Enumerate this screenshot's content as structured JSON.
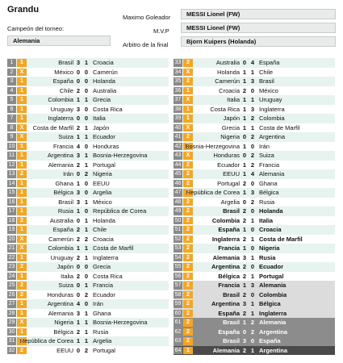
{
  "header": {
    "title": "Grandu",
    "champion_label": "Campeón del torneo:",
    "champion_value": "Alemania",
    "top_scorer_label": "Maximo Goleador",
    "top_scorer_value": "MESSI Lionel (FW)",
    "mvp_label": "M.V.P",
    "mvp_value": "MESSI Lionel (FW)",
    "referee_label": "Arbitro de la final",
    "referee_value": "Bjorn Kuipers (Holanda)"
  },
  "colors": {
    "pick_orange": "#f4a623",
    "number_gray": "#8a8a8a",
    "stripe_green": "#e7f3ef"
  },
  "left_matches": [
    {
      "n": "1",
      "pick": "1",
      "t1": "Brasil",
      "s1": "3",
      "s2": "1",
      "t2": "Croacia"
    },
    {
      "n": "2",
      "pick": "X",
      "t1": "México",
      "s1": "0",
      "s2": "0",
      "t2": "Camerún"
    },
    {
      "n": "3",
      "pick": "1",
      "t1": "España",
      "s1": "0",
      "s2": "0",
      "t2": "Holanda"
    },
    {
      "n": "4",
      "pick": "1",
      "t1": "Chile",
      "s1": "2",
      "s2": "0",
      "t2": "Australia"
    },
    {
      "n": "5",
      "pick": "1",
      "t1": "Colombia",
      "s1": "1",
      "s2": "1",
      "t2": "Grecia"
    },
    {
      "n": "6",
      "pick": "1",
      "t1": "Uruguay",
      "s1": "3",
      "s2": "0",
      "t2": "Costa Rica"
    },
    {
      "n": "7",
      "pick": "1",
      "t1": "Inglaterra",
      "s1": "0",
      "s2": "0",
      "t2": "Italia"
    },
    {
      "n": "8",
      "pick": "X",
      "t1": "Costa de Marfil",
      "s1": "2",
      "s2": "1",
      "t2": "Japón"
    },
    {
      "n": "9",
      "pick": "X",
      "t1": "Suiza",
      "s1": "1",
      "s2": "1",
      "t2": "Ecuador"
    },
    {
      "n": "10",
      "pick": "1",
      "t1": "Francia",
      "s1": "4",
      "s2": "0",
      "t2": "Honduras"
    },
    {
      "n": "11",
      "pick": "1",
      "t1": "Argentina",
      "s1": "3",
      "s2": "1",
      "t2": "Bosnia-Herzegovina"
    },
    {
      "n": "12",
      "pick": "1",
      "t1": "Alemania",
      "s1": "2",
      "s2": "1",
      "t2": "Portugal"
    },
    {
      "n": "13",
      "pick": "2",
      "t1": "Irán",
      "s1": "0",
      "s2": "2",
      "t2": "Nigeria"
    },
    {
      "n": "14",
      "pick": "1",
      "t1": "Ghana",
      "s1": "1",
      "s2": "0",
      "t2": "EEUU"
    },
    {
      "n": "15",
      "pick": "1",
      "t1": "Bélgica",
      "s1": "3",
      "s2": "0",
      "t2": "Argelia"
    },
    {
      "n": "16",
      "pick": "1",
      "t1": "Brasil",
      "s1": "3",
      "s2": "1",
      "t2": "México"
    },
    {
      "n": "17",
      "pick": "1",
      "t1": "Rusia",
      "s1": "1",
      "s2": "0",
      "t2": "República de Corea"
    },
    {
      "n": "18",
      "pick": "2",
      "t1": "Australia",
      "s1": "0",
      "s2": "1",
      "t2": "Holanda"
    },
    {
      "n": "19",
      "pick": "1",
      "t1": "España",
      "s1": "2",
      "s2": "1",
      "t2": "Chile"
    },
    {
      "n": "20",
      "pick": "X",
      "t1": "Camerún",
      "s1": "2",
      "s2": "2",
      "t2": "Croacia"
    },
    {
      "n": "21",
      "pick": "X",
      "t1": "Colombia",
      "s1": "1",
      "s2": "1",
      "t2": "Costa de Marfil"
    },
    {
      "n": "22",
      "pick": "1",
      "t1": "Uruguay",
      "s1": "2",
      "s2": "1",
      "t2": "Inglaterra"
    },
    {
      "n": "23",
      "pick": "2",
      "t1": "Japón",
      "s1": "0",
      "s2": "0",
      "t2": "Grecia"
    },
    {
      "n": "24",
      "pick": "1",
      "t1": "Italia",
      "s1": "2",
      "s2": "0",
      "t2": "Costa Rica"
    },
    {
      "n": "25",
      "pick": "2",
      "t1": "Suiza",
      "s1": "0",
      "s2": "1",
      "t2": "Francia"
    },
    {
      "n": "26",
      "pick": "2",
      "t1": "Honduras",
      "s1": "0",
      "s2": "2",
      "t2": "Ecuador"
    },
    {
      "n": "27",
      "pick": "1",
      "t1": "Argentina",
      "s1": "4",
      "s2": "0",
      "t2": "Irán"
    },
    {
      "n": "28",
      "pick": "1",
      "t1": "Alemania",
      "s1": "3",
      "s2": "1",
      "t2": "Ghana"
    },
    {
      "n": "29",
      "pick": "X",
      "t1": "Nigeria",
      "s1": "1",
      "s2": "1",
      "t2": "Bosnia-Herzegovina"
    },
    {
      "n": "30",
      "pick": "1",
      "t1": "Bélgica",
      "s1": "2",
      "s2": "1",
      "t2": "Rusia"
    },
    {
      "n": "31",
      "pick": "X",
      "t1": "República de Corea",
      "s1": "1",
      "s2": "1",
      "t2": "Argelia"
    },
    {
      "n": "32",
      "pick": "2",
      "t1": "EEUU",
      "s1": "0",
      "s2": "2",
      "t2": "Portugal"
    }
  ],
  "right_matches": [
    {
      "n": "33",
      "pick": "2",
      "t1": "Australia",
      "s1": "0",
      "s2": "4",
      "t2": "España"
    },
    {
      "n": "34",
      "pick": "X",
      "t1": "Holanda",
      "s1": "1",
      "s2": "1",
      "t2": "Chile"
    },
    {
      "n": "35",
      "pick": "2",
      "t1": "Camerún",
      "s1": "1",
      "s2": "3",
      "t2": "Brasil"
    },
    {
      "n": "36",
      "pick": "1",
      "t1": "Croacia",
      "s1": "2",
      "s2": "0",
      "t2": "México"
    },
    {
      "n": "37",
      "pick": "X",
      "t1": "Italia",
      "s1": "1",
      "s2": "1",
      "t2": "Uruguay"
    },
    {
      "n": "38",
      "pick": "1",
      "t1": "Costa Rica",
      "s1": "1",
      "s2": "3",
      "t2": "Inglaterra"
    },
    {
      "n": "39",
      "pick": "1",
      "t1": "Japón",
      "s1": "1",
      "s2": "2",
      "t2": "Colombia"
    },
    {
      "n": "40",
      "pick": "X",
      "t1": "Grecia",
      "s1": "1",
      "s2": "1",
      "t2": "Costa de Marfil"
    },
    {
      "n": "41",
      "pick": "2",
      "t1": "Nigeria",
      "s1": "0",
      "s2": "2",
      "t2": "Argentina"
    },
    {
      "n": "42",
      "pick": "1",
      "t1": "Bosnia-Herzegovina",
      "s1": "1",
      "s2": "0",
      "t2": "Irán"
    },
    {
      "n": "43",
      "pick": "X",
      "t1": "Honduras",
      "s1": "0",
      "s2": "2",
      "t2": "Suiza"
    },
    {
      "n": "44",
      "pick": "2",
      "t1": "Ecuador",
      "s1": "1",
      "s2": "2",
      "t2": "Francia"
    },
    {
      "n": "45",
      "pick": "2",
      "t1": "EEUU",
      "s1": "1",
      "s2": "4",
      "t2": "Alemania"
    },
    {
      "n": "46",
      "pick": "2",
      "t1": "Portugal",
      "s1": "2",
      "s2": "0",
      "t2": "Ghana"
    },
    {
      "n": "47",
      "pick": "2",
      "t1": "República de Corea",
      "s1": "1",
      "s2": "3",
      "t2": "Bélgica"
    },
    {
      "n": "48",
      "pick": "2",
      "t1": "Argelia",
      "s1": "0",
      "s2": "2",
      "t2": "Rusia"
    },
    {
      "n": "49",
      "pick": "2",
      "t1": "Brasil",
      "s1": "2",
      "s2": "0",
      "t2": "Holanda"
    },
    {
      "n": "50",
      "pick": "2",
      "t1": "Colombia",
      "s1": "2",
      "s2": "1",
      "t2": "Italia"
    },
    {
      "n": "51",
      "pick": "2",
      "t1": "España",
      "s1": "1",
      "s2": "0",
      "t2": "Croacia"
    },
    {
      "n": "52",
      "pick": "2",
      "t1": "Inglaterra",
      "s1": "2",
      "s2": "1",
      "t2": "Costa de Marfil"
    },
    {
      "n": "53",
      "pick": "2",
      "t1": "Francia",
      "s1": "1",
      "s2": "0",
      "t2": "Nigeria"
    },
    {
      "n": "54",
      "pick": "2",
      "t1": "Alemania",
      "s1": "3",
      "s2": "1",
      "t2": "Rusia"
    },
    {
      "n": "55",
      "pick": "2",
      "t1": "Argentina",
      "s1": "2",
      "s2": "0",
      "t2": "Ecuador"
    },
    {
      "n": "56",
      "pick": "2",
      "t1": "Bélgica",
      "s1": "2",
      "s2": "1",
      "t2": "Portugal"
    },
    {
      "n": "57",
      "pick": "2",
      "t1": "Francia",
      "s1": "1",
      "s2": "3",
      "t2": "Alemania"
    },
    {
      "n": "58",
      "pick": "2",
      "t1": "Brasil",
      "s1": "2",
      "s2": "0",
      "t2": "Colombia"
    },
    {
      "n": "59",
      "pick": "2",
      "t1": "Argentina",
      "s1": "3",
      "s2": "1",
      "t2": "Bélgica"
    },
    {
      "n": "60",
      "pick": "2",
      "t1": "España",
      "s1": "2",
      "s2": "1",
      "t2": "Inglaterra"
    },
    {
      "n": "61",
      "pick": "2",
      "t1": "Brasil",
      "s1": "1",
      "s2": "2",
      "t2": "Alemania"
    },
    {
      "n": "62",
      "pick": "2",
      "t1": "España",
      "s1": "0",
      "s2": "2",
      "t2": "Argentina"
    },
    {
      "n": "63",
      "pick": "2",
      "t1": "Brasil",
      "s1": "3",
      "s2": "0",
      "t2": "España"
    },
    {
      "n": "64",
      "pick": "1",
      "t1": "Alemania",
      "s1": "2",
      "s2": "1",
      "t2": "Argentina"
    }
  ]
}
